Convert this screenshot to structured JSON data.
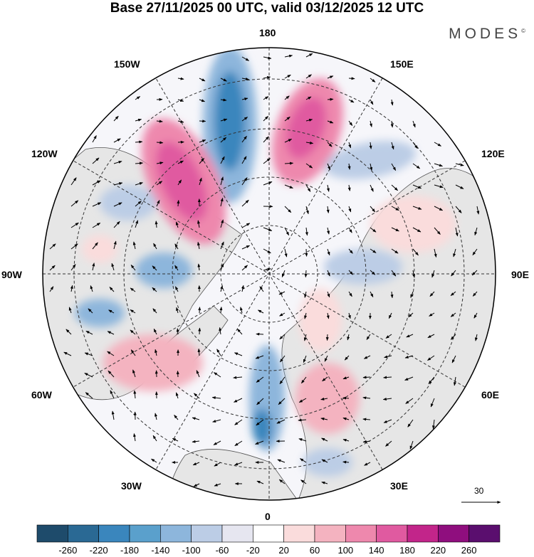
{
  "header": {
    "title": "Base 27/11/2025 00 UTC, valid 03/12/2025 12 UTC",
    "brand": "MODES",
    "brand_mark": "©"
  },
  "map": {
    "projection": "north-polar-stereographic",
    "longitude_labels": {
      "lon_180": "180",
      "lon_150e": "150E",
      "lon_120e": "120E",
      "lon_90e": "90E",
      "lon_60e": "60E",
      "lon_30e": "30E",
      "lon_0": "0",
      "lon_30w": "30W",
      "lon_60w": "60W",
      "lon_90w": "90W",
      "lon_120w": "120W",
      "lon_150w": "150W"
    },
    "reference_vector_label": "30"
  },
  "colorbar": {
    "colors": [
      "#1e4b6b",
      "#2a6994",
      "#3a86bd",
      "#5aa0cc",
      "#8db6dc",
      "#bccde6",
      "#e6e6f0",
      "#ffffff",
      "#fadcdc",
      "#f4b3c0",
      "#ee88ad",
      "#e05aa0",
      "#c2258a",
      "#8f0e7e",
      "#5a0e6e"
    ],
    "tick_labels": [
      "-260",
      "-220",
      "-180",
      "-140",
      "-100",
      "-60",
      "-20",
      "20",
      "60",
      "100",
      "140",
      "180",
      "220",
      "260"
    ]
  },
  "colors": {
    "land": "#ececec",
    "grid": "#333333"
  }
}
